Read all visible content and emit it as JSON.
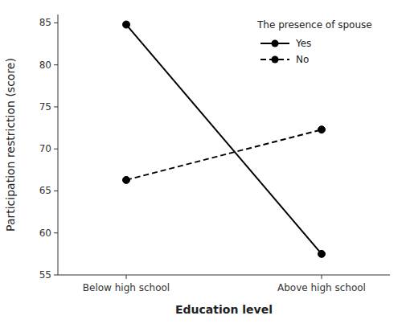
{
  "chart_data": {
    "type": "line",
    "categories": [
      "Below high school",
      "Above high school"
    ],
    "series": [
      {
        "name": "Yes",
        "color": "#000000",
        "line_style": "solid",
        "marker": "circle",
        "values": [
          84.8,
          57.5
        ]
      },
      {
        "name": "No",
        "color": "#000000",
        "line_style": "dashed",
        "marker": "circle",
        "values": [
          66.3,
          72.3
        ]
      }
    ],
    "xlabel": "Education level",
    "ylabel": "Participation restriction (score)",
    "ylim": [
      55,
      86
    ],
    "yticks": [
      55,
      60,
      65,
      70,
      75,
      80,
      85
    ],
    "grid": false,
    "legend": "upper right",
    "legend_title": "The presence of spouse"
  }
}
